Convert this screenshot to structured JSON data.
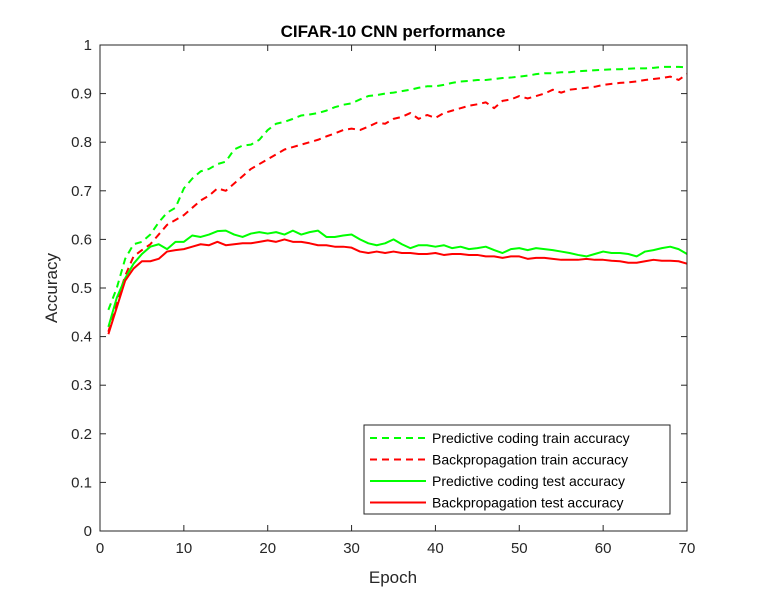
{
  "chart_data": {
    "type": "line",
    "title": "CIFAR-10 CNN performance",
    "xlabel": "Epoch",
    "ylabel": "Accuracy",
    "xlim": [
      0,
      70
    ],
    "ylim": [
      0,
      1
    ],
    "xticks": [
      0,
      10,
      20,
      30,
      40,
      50,
      60,
      70
    ],
    "xtick_labels": [
      "0",
      "10",
      "20",
      "30",
      "40",
      "50",
      "60",
      "70"
    ],
    "yticks": [
      0,
      0.1,
      0.2,
      0.3,
      0.4,
      0.5,
      0.6,
      0.7,
      0.8,
      0.9,
      1
    ],
    "ytick_labels": [
      "0",
      "0.1",
      "0.2",
      "0.3",
      "0.4",
      "0.5",
      "0.6",
      "0.7",
      "0.8",
      "0.9",
      "1"
    ],
    "grid": false,
    "legend_position": "bottom-right",
    "x": [
      1,
      2,
      3,
      4,
      5,
      6,
      7,
      8,
      9,
      10,
      11,
      12,
      13,
      14,
      15,
      16,
      17,
      18,
      19,
      20,
      21,
      22,
      23,
      24,
      25,
      26,
      27,
      28,
      29,
      30,
      31,
      32,
      33,
      34,
      35,
      36,
      37,
      38,
      39,
      40,
      41,
      42,
      43,
      44,
      45,
      46,
      47,
      48,
      49,
      50,
      51,
      52,
      53,
      54,
      55,
      56,
      57,
      58,
      59,
      60,
      61,
      62,
      63,
      64,
      65,
      66,
      67,
      68,
      69,
      70
    ],
    "series": [
      {
        "name": "Predictive coding train accuracy",
        "color": "#00ff00",
        "dash": "dashed",
        "values": [
          0.455,
          0.5,
          0.56,
          0.59,
          0.595,
          0.61,
          0.635,
          0.655,
          0.665,
          0.705,
          0.725,
          0.74,
          0.745,
          0.755,
          0.76,
          0.785,
          0.793,
          0.795,
          0.805,
          0.825,
          0.838,
          0.842,
          0.848,
          0.855,
          0.857,
          0.86,
          0.865,
          0.872,
          0.877,
          0.88,
          0.888,
          0.895,
          0.897,
          0.9,
          0.902,
          0.905,
          0.908,
          0.912,
          0.915,
          0.915,
          0.918,
          0.922,
          0.925,
          0.926,
          0.928,
          0.928,
          0.93,
          0.932,
          0.933,
          0.935,
          0.937,
          0.94,
          0.942,
          0.942,
          0.944,
          0.944,
          0.946,
          0.947,
          0.948,
          0.949,
          0.95,
          0.95,
          0.951,
          0.952,
          0.952,
          0.953,
          0.955,
          0.955,
          0.955,
          0.954
        ]
      },
      {
        "name": "Backpropagation train accuracy",
        "color": "#ff0000",
        "dash": "dashed",
        "values": [
          0.41,
          0.47,
          0.525,
          0.565,
          0.578,
          0.59,
          0.61,
          0.63,
          0.64,
          0.65,
          0.665,
          0.68,
          0.69,
          0.705,
          0.7,
          0.715,
          0.73,
          0.745,
          0.755,
          0.765,
          0.775,
          0.785,
          0.79,
          0.795,
          0.8,
          0.805,
          0.812,
          0.818,
          0.825,
          0.828,
          0.825,
          0.832,
          0.84,
          0.838,
          0.848,
          0.852,
          0.86,
          0.848,
          0.856,
          0.85,
          0.86,
          0.865,
          0.87,
          0.875,
          0.878,
          0.882,
          0.87,
          0.885,
          0.888,
          0.895,
          0.89,
          0.895,
          0.9,
          0.908,
          0.902,
          0.908,
          0.91,
          0.912,
          0.914,
          0.918,
          0.92,
          0.922,
          0.923,
          0.925,
          0.928,
          0.93,
          0.932,
          0.935,
          0.928,
          0.94
        ]
      },
      {
        "name": "Predictive coding test accuracy",
        "color": "#00ff00",
        "dash": "solid",
        "values": [
          0.42,
          0.48,
          0.52,
          0.55,
          0.57,
          0.585,
          0.59,
          0.58,
          0.595,
          0.595,
          0.608,
          0.605,
          0.61,
          0.617,
          0.618,
          0.61,
          0.605,
          0.612,
          0.615,
          0.612,
          0.615,
          0.61,
          0.618,
          0.61,
          0.615,
          0.618,
          0.605,
          0.605,
          0.608,
          0.61,
          0.6,
          0.592,
          0.588,
          0.592,
          0.6,
          0.59,
          0.582,
          0.588,
          0.588,
          0.585,
          0.588,
          0.582,
          0.585,
          0.58,
          0.582,
          0.585,
          0.578,
          0.572,
          0.58,
          0.582,
          0.578,
          0.582,
          0.58,
          0.578,
          0.575,
          0.572,
          0.568,
          0.565,
          0.57,
          0.575,
          0.572,
          0.572,
          0.57,
          0.565,
          0.575,
          0.578,
          0.582,
          0.585,
          0.58,
          0.57
        ]
      },
      {
        "name": "Backpropagation test accuracy",
        "color": "#ff0000",
        "dash": "solid",
        "values": [
          0.405,
          0.46,
          0.515,
          0.54,
          0.555,
          0.555,
          0.56,
          0.575,
          0.578,
          0.58,
          0.585,
          0.59,
          0.588,
          0.595,
          0.588,
          0.59,
          0.592,
          0.592,
          0.595,
          0.598,
          0.595,
          0.6,
          0.595,
          0.595,
          0.592,
          0.588,
          0.588,
          0.585,
          0.585,
          0.583,
          0.575,
          0.572,
          0.575,
          0.572,
          0.575,
          0.572,
          0.572,
          0.57,
          0.57,
          0.572,
          0.568,
          0.57,
          0.57,
          0.568,
          0.568,
          0.565,
          0.565,
          0.562,
          0.565,
          0.565,
          0.56,
          0.562,
          0.562,
          0.56,
          0.558,
          0.558,
          0.558,
          0.56,
          0.558,
          0.558,
          0.556,
          0.555,
          0.552,
          0.552,
          0.555,
          0.558,
          0.556,
          0.556,
          0.555,
          0.55
        ]
      }
    ]
  }
}
